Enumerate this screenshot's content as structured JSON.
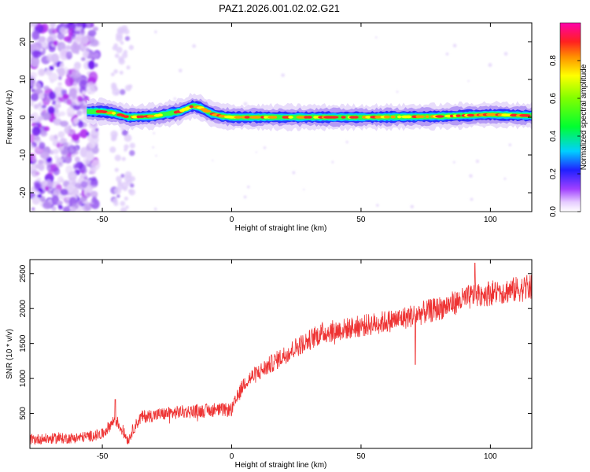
{
  "title": "PAZ1.2026.001.02.02.G21",
  "chart_data": [
    {
      "type": "heatmap",
      "name": "spectrogram",
      "xlabel": "Height of straight line (km)",
      "ylabel": "Frequency (Hz)",
      "xlim": [
        -78,
        116
      ],
      "ylim": [
        -25,
        25
      ],
      "xticks": [
        -50,
        0,
        50,
        100
      ],
      "yticks": [
        -20,
        -10,
        0,
        10,
        20
      ],
      "ridge": [
        {
          "x": -55,
          "y": 1.5
        },
        {
          "x": -50,
          "y": 1.5
        },
        {
          "x": -45,
          "y": 1.0
        },
        {
          "x": -40,
          "y": 0.0
        },
        {
          "x": -30,
          "y": 0.3
        },
        {
          "x": -20,
          "y": 1.5
        },
        {
          "x": -15,
          "y": 3.0
        },
        {
          "x": -12,
          "y": 2.5
        },
        {
          "x": -8,
          "y": 1.0
        },
        {
          "x": -4,
          "y": 0.3
        },
        {
          "x": 0,
          "y": 0.0
        },
        {
          "x": 20,
          "y": 0.0
        },
        {
          "x": 50,
          "y": 0.0
        },
        {
          "x": 80,
          "y": 0.2
        },
        {
          "x": 100,
          "y": 0.7
        },
        {
          "x": 116,
          "y": 0.4
        }
      ],
      "noise_region_x": [
        -78,
        -52
      ],
      "colorbar": {
        "label": "Normalized spectral amplitude",
        "ticks": [
          0.0,
          0.2,
          0.4,
          0.6,
          0.8
        ],
        "range": [
          0.0,
          1.0
        ]
      }
    },
    {
      "type": "line",
      "name": "snr",
      "xlabel": "Height of straight line (km)",
      "ylabel": "SNR (10 * v/v)",
      "xlim": [
        -78,
        116
      ],
      "ylim": [
        0,
        2700
      ],
      "xticks": [
        -50,
        0,
        50,
        100
      ],
      "yticks": [
        500,
        1000,
        1500,
        2000,
        2500
      ],
      "color": "#ee3333",
      "trend": [
        {
          "x": -78,
          "y": 130
        },
        {
          "x": -60,
          "y": 150
        },
        {
          "x": -50,
          "y": 200
        },
        {
          "x": -45,
          "y": 420
        },
        {
          "x": -40,
          "y": 120
        },
        {
          "x": -38,
          "y": 280
        },
        {
          "x": -35,
          "y": 450
        },
        {
          "x": -20,
          "y": 520
        },
        {
          "x": -5,
          "y": 550
        },
        {
          "x": 0,
          "y": 550
        },
        {
          "x": 5,
          "y": 950
        },
        {
          "x": 15,
          "y": 1200
        },
        {
          "x": 25,
          "y": 1450
        },
        {
          "x": 35,
          "y": 1650
        },
        {
          "x": 50,
          "y": 1750
        },
        {
          "x": 65,
          "y": 1850
        },
        {
          "x": 80,
          "y": 2000
        },
        {
          "x": 95,
          "y": 2200
        },
        {
          "x": 116,
          "y": 2300
        }
      ],
      "noise_amplitude": 140,
      "spikes": [
        {
          "x": 71,
          "y": 1200
        },
        {
          "x": 94,
          "y": 2650
        },
        {
          "x": -45,
          "y": 700
        }
      ]
    }
  ]
}
